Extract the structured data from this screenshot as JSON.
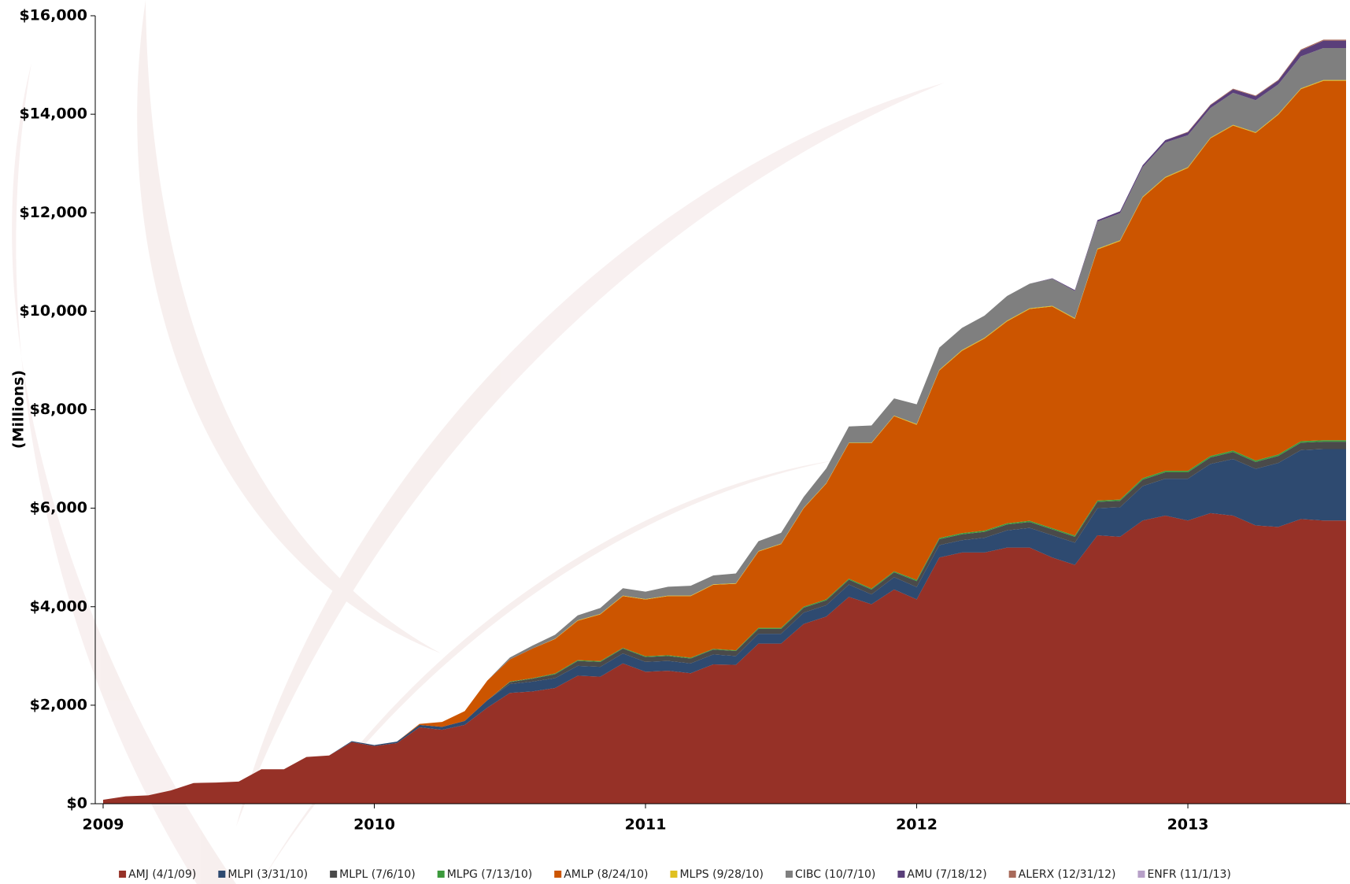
{
  "chart_data": {
    "type": "stacked_area",
    "y_label": "(Millions)",
    "ylim": [
      0,
      16000
    ],
    "yticks": [
      {
        "value": 0,
        "label": "$0"
      },
      {
        "value": 2000,
        "label": "$2,000"
      },
      {
        "value": 4000,
        "label": "$4,000"
      },
      {
        "value": 6000,
        "label": "$6,000"
      },
      {
        "value": 8000,
        "label": "$8,000"
      },
      {
        "value": 10000,
        "label": "$10,000"
      },
      {
        "value": 12000,
        "label": "$12,000"
      },
      {
        "value": 14000,
        "label": "$14,000"
      },
      {
        "value": 16000,
        "label": "$16,000"
      }
    ],
    "categories": [
      "2009",
      null,
      null,
      null,
      null,
      null,
      null,
      null,
      null,
      null,
      null,
      null,
      "2010",
      null,
      null,
      null,
      null,
      null,
      null,
      null,
      null,
      null,
      null,
      null,
      "2011",
      null,
      null,
      null,
      null,
      null,
      null,
      null,
      null,
      null,
      null,
      null,
      "2012",
      null,
      null,
      null,
      null,
      null,
      null,
      null,
      null,
      null,
      null,
      null,
      "2013",
      null,
      null,
      null,
      null,
      null,
      null,
      null
    ],
    "series": [
      {
        "name": "AMJ (4/1/09)",
        "color": "#963127",
        "values": [
          80,
          150,
          170,
          270,
          420,
          430,
          450,
          700,
          700,
          950,
          980,
          1250,
          1170,
          1230,
          1550,
          1500,
          1600,
          1950,
          2250,
          2280,
          2350,
          2600,
          2580,
          2850,
          2680,
          2700,
          2650,
          2830,
          2820,
          3250,
          3250,
          3650,
          3800,
          4200,
          4050,
          4350,
          4150,
          5000,
          5100,
          5100,
          5200,
          5200,
          5000,
          4850,
          5450,
          5420,
          5750,
          5850,
          5750,
          5900,
          5850,
          5650,
          5620,
          5780,
          5750,
          5750
        ]
      },
      {
        "name": "MLPI (3/31/10)",
        "color": "#2e4a70",
        "values": [
          0,
          0,
          0,
          0,
          0,
          0,
          0,
          0,
          0,
          0,
          0,
          20,
          20,
          30,
          50,
          60,
          80,
          150,
          180,
          200,
          200,
          200,
          200,
          200,
          200,
          200,
          200,
          200,
          180,
          200,
          200,
          230,
          230,
          250,
          200,
          250,
          250,
          250,
          250,
          300,
          350,
          400,
          450,
          450,
          550,
          600,
          700,
          750,
          850,
          1000,
          1150,
          1150,
          1300,
          1400,
          1450,
          1450
        ]
      },
      {
        "name": "MLPL (7/6/10)",
        "color": "#4a4a4a",
        "values": [
          0,
          0,
          0,
          0,
          0,
          0,
          0,
          0,
          0,
          0,
          0,
          0,
          0,
          0,
          0,
          0,
          0,
          0,
          40,
          60,
          80,
          100,
          100,
          100,
          100,
          100,
          100,
          100,
          100,
          100,
          100,
          100,
          100,
          100,
          100,
          100,
          120,
          120,
          120,
          120,
          120,
          120,
          120,
          120,
          130,
          130,
          130,
          130,
          130,
          130,
          140,
          140,
          140,
          150,
          150,
          150
        ]
      },
      {
        "name": "MLPG (7/13/10)",
        "color": "#3c9a3c",
        "values": [
          0,
          0,
          0,
          0,
          0,
          0,
          0,
          0,
          0,
          0,
          0,
          0,
          0,
          0,
          0,
          0,
          0,
          0,
          10,
          10,
          15,
          15,
          15,
          15,
          15,
          15,
          15,
          15,
          15,
          20,
          20,
          20,
          20,
          20,
          20,
          20,
          25,
          25,
          25,
          25,
          25,
          25,
          25,
          25,
          25,
          25,
          30,
          30,
          30,
          30,
          30,
          30,
          30,
          30,
          30,
          30
        ]
      },
      {
        "name": "AMLP (8/24/10)",
        "color": "#cc5500",
        "values": [
          0,
          0,
          0,
          0,
          0,
          0,
          0,
          0,
          0,
          0,
          0,
          0,
          0,
          0,
          20,
          100,
          200,
          400,
          450,
          600,
          700,
          800,
          950,
          1050,
          1150,
          1200,
          1250,
          1300,
          1350,
          1550,
          1700,
          2000,
          2350,
          2750,
          2950,
          3150,
          3150,
          3400,
          3700,
          3900,
          4100,
          4300,
          4500,
          4400,
          5100,
          5250,
          5700,
          5950,
          6150,
          6450,
          6600,
          6650,
          6900,
          7150,
          7300,
          7300
        ]
      },
      {
        "name": "MLPS (9/28/10)",
        "color": "#e0c020",
        "values": [
          0,
          0,
          0,
          0,
          0,
          0,
          0,
          0,
          0,
          0,
          0,
          0,
          0,
          0,
          0,
          0,
          0,
          0,
          0,
          0,
          5,
          10,
          10,
          10,
          10,
          10,
          10,
          10,
          10,
          10,
          10,
          10,
          10,
          10,
          10,
          10,
          15,
          15,
          15,
          15,
          15,
          15,
          15,
          15,
          15,
          15,
          15,
          15,
          15,
          15,
          15,
          15,
          15,
          15,
          15,
          15
        ]
      },
      {
        "name": "CIBC (10/7/10)",
        "color": "#7f7f7f",
        "values": [
          0,
          0,
          0,
          0,
          0,
          0,
          0,
          0,
          0,
          0,
          0,
          0,
          0,
          0,
          0,
          0,
          0,
          0,
          40,
          60,
          80,
          100,
          120,
          150,
          150,
          180,
          200,
          180,
          200,
          200,
          220,
          220,
          300,
          330,
          350,
          350,
          400,
          450,
          450,
          450,
          500,
          500,
          550,
          550,
          550,
          550,
          600,
          700,
          650,
          600,
          650,
          650,
          600,
          650,
          650,
          650
        ]
      },
      {
        "name": "AMU (7/18/12)",
        "color": "#5a3f7a",
        "values": [
          0,
          0,
          0,
          0,
          0,
          0,
          0,
          0,
          0,
          0,
          0,
          0,
          0,
          0,
          0,
          0,
          0,
          0,
          0,
          0,
          0,
          0,
          0,
          0,
          0,
          0,
          0,
          0,
          0,
          0,
          0,
          0,
          0,
          0,
          0,
          0,
          0,
          0,
          0,
          0,
          0,
          0,
          10,
          20,
          30,
          40,
          40,
          50,
          60,
          60,
          70,
          80,
          80,
          120,
          150,
          150
        ]
      },
      {
        "name": "ALERX (12/31/12)",
        "color": "#a86a5a",
        "values": [
          0,
          0,
          0,
          0,
          0,
          0,
          0,
          0,
          0,
          0,
          0,
          0,
          0,
          0,
          0,
          0,
          0,
          0,
          0,
          0,
          0,
          0,
          0,
          0,
          0,
          0,
          0,
          0,
          0,
          0,
          0,
          0,
          0,
          0,
          0,
          0,
          0,
          0,
          0,
          0,
          0,
          0,
          0,
          0,
          0,
          0,
          0,
          0,
          10,
          10,
          15,
          15,
          15,
          20,
          20,
          20
        ]
      },
      {
        "name": "ENFR (11/1/13)",
        "color": "#b7a0c8",
        "values": [
          0,
          0,
          0,
          0,
          0,
          0,
          0,
          0,
          0,
          0,
          0,
          0,
          0,
          0,
          0,
          0,
          0,
          0,
          0,
          0,
          0,
          0,
          0,
          0,
          0,
          0,
          0,
          0,
          0,
          0,
          0,
          0,
          0,
          0,
          0,
          0,
          0,
          0,
          0,
          0,
          0,
          0,
          0,
          0,
          0,
          0,
          0,
          0,
          0,
          0,
          0,
          0,
          0,
          0,
          0,
          0
        ]
      }
    ]
  }
}
